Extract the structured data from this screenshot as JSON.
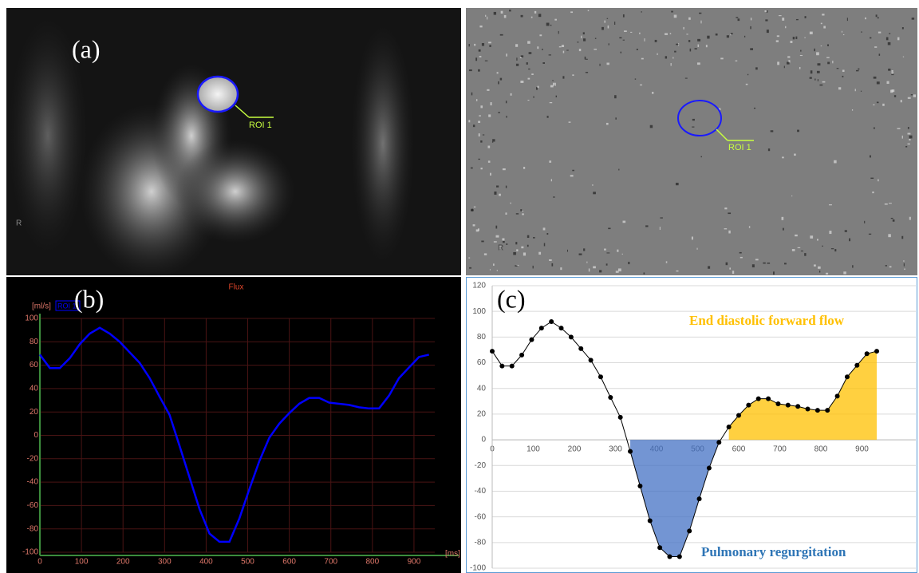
{
  "labels": {
    "panel_a": "(a)",
    "roi_left": "ROI 1",
    "roi_right": "ROI 1",
    "orient_left": "R",
    "orient_right": "R"
  },
  "chart_data": [
    {
      "type": "line",
      "panel_label": "(b)",
      "title": "Flux",
      "y_unit": "[ml/s]",
      "x_unit": "[ms]",
      "x": [
        0,
        24,
        48,
        72,
        96,
        120,
        144,
        168,
        192,
        216,
        240,
        264,
        288,
        312,
        336,
        360,
        384,
        408,
        432,
        456,
        480,
        504,
        528,
        552,
        576,
        600,
        624,
        648,
        672,
        696,
        720,
        744,
        768,
        792,
        816,
        840,
        864,
        888,
        912,
        936
      ],
      "series": [
        {
          "name": "ROI 1",
          "color": "#0000ff",
          "values": [
            69,
            57.5,
            57.5,
            66,
            78,
            87,
            92,
            87,
            80,
            71,
            62,
            49,
            33,
            17.5,
            -9,
            -36,
            -63,
            -84,
            -91,
            -91,
            -71,
            -46,
            -22,
            -2,
            10,
            19,
            27,
            32,
            32,
            28,
            27,
            26,
            24,
            23,
            23,
            34,
            49,
            58,
            67,
            69
          ]
        }
      ],
      "xlim": [
        0,
        950
      ],
      "ylim": [
        -100,
        100
      ],
      "xticks": [
        0,
        100,
        200,
        300,
        400,
        500,
        600,
        700,
        800,
        900
      ],
      "yticks": [
        -100,
        -80,
        -60,
        -40,
        -20,
        0,
        20,
        40,
        60,
        80,
        100
      ],
      "grid": true
    },
    {
      "type": "line",
      "panel_label": "(c)",
      "annotations": [
        "End diastolic forward flow",
        "Pulmonary regurgitation"
      ],
      "x": [
        0,
        24,
        48,
        72,
        96,
        120,
        144,
        168,
        192,
        216,
        240,
        264,
        288,
        312,
        336,
        360,
        384,
        408,
        432,
        456,
        480,
        504,
        528,
        552,
        576,
        600,
        624,
        648,
        672,
        696,
        720,
        744,
        768,
        792,
        816,
        840,
        864,
        888,
        912,
        936
      ],
      "series": [
        {
          "color": "#000000",
          "values": [
            69,
            57.5,
            57.5,
            66,
            78,
            87,
            92,
            87,
            80,
            71,
            62,
            49,
            33,
            17.5,
            -9,
            -36,
            -63,
            -84,
            -91,
            -91,
            -71,
            -46,
            -22,
            -2,
            10,
            19,
            27,
            32,
            32,
            28,
            27,
            26,
            24,
            23,
            23,
            34,
            49,
            58,
            67,
            69
          ]
        }
      ],
      "negative_color": "#4472c4",
      "positive_color": "#ffc000",
      "xlim": [
        0,
        1000
      ],
      "ylim": [
        -100,
        120
      ],
      "xticks": [
        0,
        100,
        200,
        300,
        400,
        500,
        600,
        700,
        800,
        900
      ],
      "yticks": [
        -100,
        -80,
        -60,
        -40,
        -20,
        0,
        20,
        40,
        60,
        80,
        100,
        120
      ],
      "grid": true
    }
  ]
}
